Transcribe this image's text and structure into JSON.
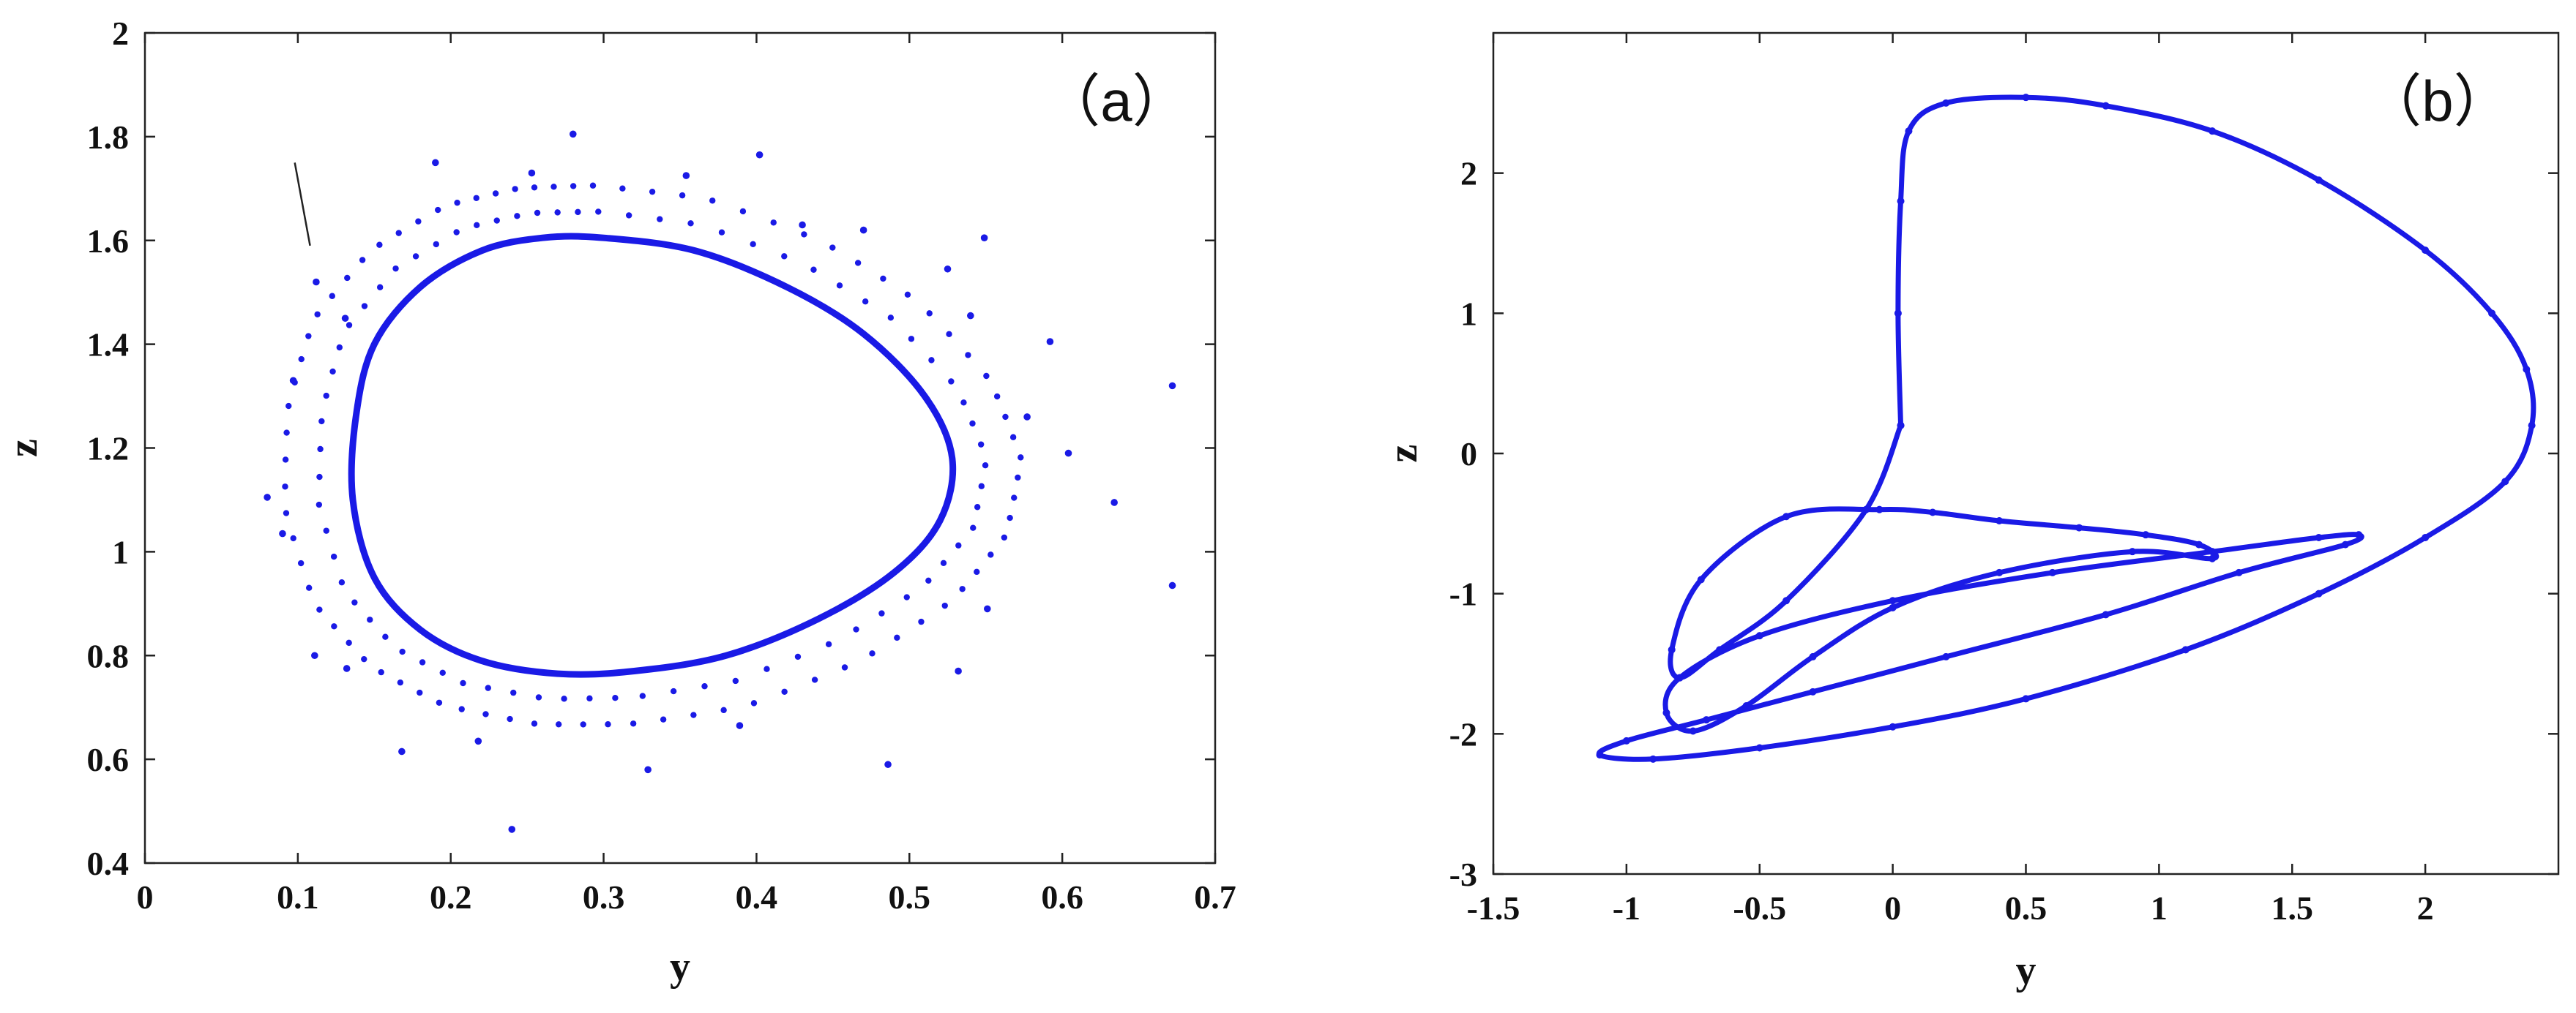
{
  "chart_data": [
    {
      "type": "scatter",
      "panel_label": "（a）",
      "xlabel": "y",
      "ylabel": "z",
      "xlim": [
        0,
        0.7
      ],
      "ylim": [
        0.4,
        2.0
      ],
      "x_ticks": [
        0,
        0.1,
        0.2,
        0.3,
        0.4,
        0.5,
        0.6,
        0.7
      ],
      "x_tick_labels": [
        "0",
        "0.1",
        "0.2",
        "0.3",
        "0.4",
        "0.5",
        "0.6",
        "0.7"
      ],
      "y_ticks": [
        0.4,
        0.6,
        0.8,
        1.0,
        1.2,
        1.4,
        1.6,
        1.8,
        2.0
      ],
      "y_tick_labels": [
        "0.4",
        "0.6",
        "0.8",
        "1",
        "1.2",
        "1.4",
        "1.6",
        "1.8",
        "2"
      ],
      "grid": false,
      "color": "#1a1ae6",
      "limit_cycle": {
        "x": [
          0.3,
          0.36,
          0.42,
          0.47,
          0.51,
          0.528,
          0.52,
          0.49,
          0.44,
          0.38,
          0.32,
          0.27,
          0.22,
          0.18,
          0.15,
          0.136,
          0.138,
          0.15,
          0.18,
          0.22,
          0.26,
          0.3
        ],
        "y": [
          1.605,
          1.58,
          1.51,
          1.42,
          1.3,
          1.18,
          1.06,
          0.96,
          0.87,
          0.8,
          0.77,
          0.765,
          0.79,
          0.85,
          0.95,
          1.1,
          1.26,
          1.4,
          1.51,
          1.58,
          1.605,
          1.605
        ]
      },
      "scatter_points": {
        "x": [
          0.28,
          0.19,
          0.402,
          0.354,
          0.253,
          0.549,
          0.112,
          0.131,
          0.097,
          0.08,
          0.09,
          0.111,
          0.132,
          0.168,
          0.218,
          0.24,
          0.329,
          0.389,
          0.486,
          0.532,
          0.551,
          0.577,
          0.592,
          0.604,
          0.634,
          0.672,
          0.672,
          0.54,
          0.525,
          0.47,
          0.43
        ],
        "y": [
          1.805,
          1.75,
          1.765,
          1.725,
          1.73,
          1.605,
          1.52,
          1.45,
          1.33,
          1.105,
          1.035,
          0.8,
          0.775,
          0.615,
          0.635,
          0.465,
          0.58,
          0.665,
          0.59,
          0.77,
          0.89,
          1.26,
          1.405,
          1.19,
          1.095,
          1.32,
          0.935,
          1.455,
          1.545,
          1.62,
          1.63
        ]
      },
      "dense_ring_offsets": [
        0.03,
        0.06
      ],
      "annotation_line": {
        "x": [
          0.098,
          0.108
        ],
        "y": [
          1.75,
          1.59
        ]
      }
    },
    {
      "type": "line",
      "panel_label": "（b）",
      "xlabel": "y",
      "ylabel": "z",
      "xlim": [
        -1.5,
        2.5
      ],
      "ylim": [
        -3,
        3
      ],
      "x_ticks": [
        -1.5,
        -1,
        -0.5,
        0,
        0.5,
        1,
        1.5,
        2
      ],
      "x_tick_labels": [
        "-1.5",
        "-1",
        "-0.5",
        "0",
        "0.5",
        "1",
        "1.5",
        "2"
      ],
      "y_ticks": [
        -3,
        -2,
        -1,
        0,
        1,
        2
      ],
      "y_tick_labels": [
        "-3",
        "-2",
        "-1",
        "0",
        "1",
        "2"
      ],
      "grid": false,
      "color": "#1a1ae6",
      "trajectory": {
        "x": [
          0.03,
          0.02,
          0.03,
          0.06,
          0.2,
          0.5,
          0.8,
          1.2,
          1.6,
          2.0,
          2.25,
          2.38,
          2.4,
          2.3,
          2.0,
          1.6,
          1.1,
          0.5,
          0.0,
          -0.5,
          -0.9,
          -1.1,
          -1.0,
          -0.7,
          -0.3,
          0.2,
          0.8,
          1.3,
          1.7,
          1.75,
          1.6,
          1.2,
          0.6,
          0.0,
          -0.5,
          -0.8,
          -0.85,
          -0.75,
          -0.55,
          -0.3,
          0.0,
          0.4,
          0.9,
          1.2,
          1.15,
          0.95,
          0.7,
          0.4,
          0.15,
          -0.05,
          -0.4,
          -0.72,
          -0.83,
          -0.8,
          -0.65,
          -0.4,
          -0.1,
          0.03
        ],
        "y": [
          0.2,
          1.0,
          1.8,
          2.3,
          2.5,
          2.54,
          2.48,
          2.3,
          1.95,
          1.45,
          1.0,
          0.6,
          0.2,
          -0.2,
          -0.6,
          -1.0,
          -1.4,
          -1.75,
          -1.95,
          -2.1,
          -2.18,
          -2.15,
          -2.05,
          -1.9,
          -1.7,
          -1.45,
          -1.15,
          -0.85,
          -0.65,
          -0.58,
          -0.6,
          -0.7,
          -0.85,
          -1.05,
          -1.3,
          -1.6,
          -1.85,
          -1.98,
          -1.8,
          -1.45,
          -1.1,
          -0.85,
          -0.7,
          -0.75,
          -0.65,
          -0.58,
          -0.53,
          -0.48,
          -0.42,
          -0.4,
          -0.45,
          -0.9,
          -1.4,
          -1.6,
          -1.4,
          -1.05,
          -0.4,
          0.2
        ]
      }
    }
  ]
}
